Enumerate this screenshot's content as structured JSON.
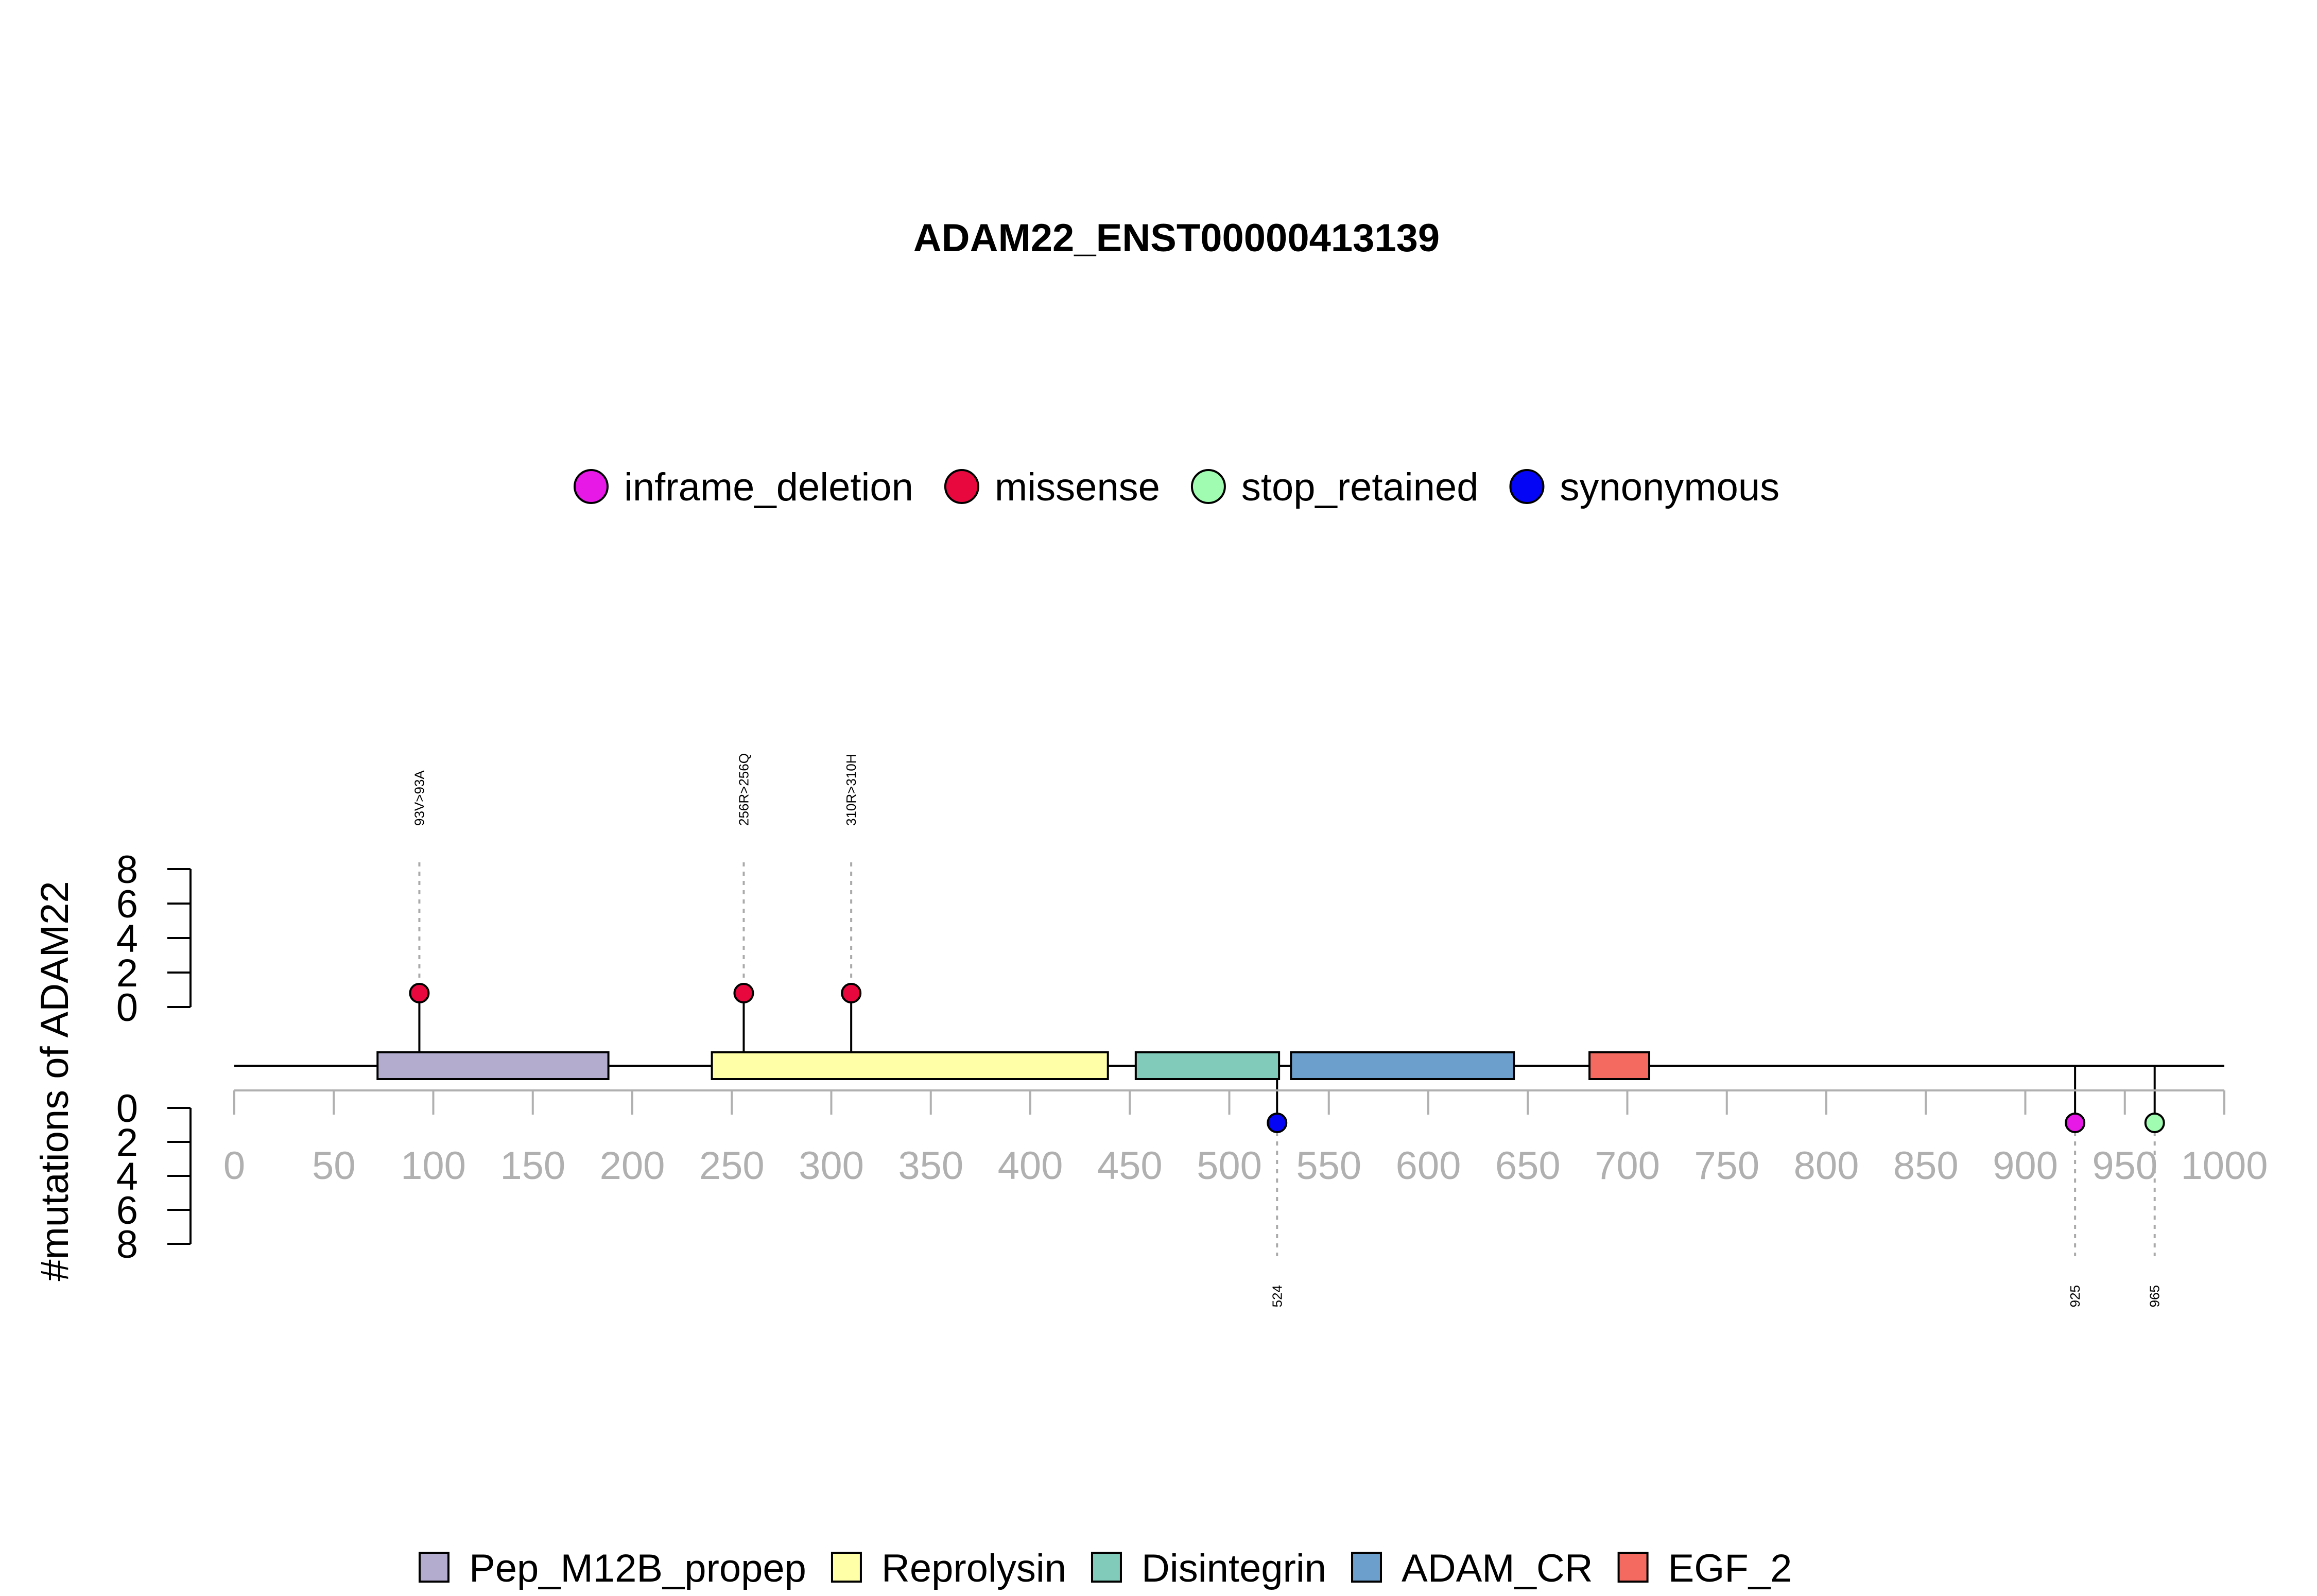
{
  "chart_data": {
    "type": "lollipop",
    "title": "ADAM22_ENST00000413139",
    "ylabel": "#mutations of ADAM22",
    "xlim": [
      0,
      1000
    ],
    "x_ticks": [
      0,
      50,
      100,
      150,
      200,
      250,
      300,
      350,
      400,
      450,
      500,
      550,
      600,
      650,
      700,
      750,
      800,
      850,
      900,
      950,
      1000
    ],
    "y_ticks_upper": [
      0,
      2,
      4,
      6,
      8
    ],
    "y_ticks_lower": [
      0,
      2,
      4,
      6,
      8
    ],
    "mutation_legend": [
      {
        "name": "inframe_deletion",
        "color": "#e619e6"
      },
      {
        "name": "missense",
        "color": "#e8083e"
      },
      {
        "name": "stop_retained",
        "color": "#9ffcb0"
      },
      {
        "name": "synonymous",
        "color": "#0505f5"
      }
    ],
    "domain_legend": [
      {
        "name": "Pep_M12B_propep",
        "color": "#b3accf"
      },
      {
        "name": "Reprolysin",
        "color": "#ffffa8"
      },
      {
        "name": "Disintegrin",
        "color": "#80cbb9"
      },
      {
        "name": "ADAM_CR",
        "color": "#6d9fcc"
      },
      {
        "name": "EGF_2",
        "color": "#f56a60"
      }
    ],
    "domains": [
      {
        "name": "Pep_M12B_propep",
        "start": 72,
        "end": 188
      },
      {
        "name": "Reprolysin",
        "start": 240,
        "end": 439
      },
      {
        "name": "Disintegrin",
        "start": 453,
        "end": 525
      },
      {
        "name": "ADAM_CR",
        "start": 531,
        "end": 643
      },
      {
        "name": "EGF_2",
        "start": 681,
        "end": 711
      }
    ],
    "mutations": [
      {
        "position": 93,
        "count": 1,
        "type": "missense",
        "side": "top",
        "label": "93V>93A"
      },
      {
        "position": 256,
        "count": 1,
        "type": "missense",
        "side": "top",
        "label": "256R>256Q"
      },
      {
        "position": 310,
        "count": 1,
        "type": "missense",
        "side": "top",
        "label": "310R>310H"
      },
      {
        "position": 524,
        "count": 1,
        "type": "synonymous",
        "side": "bottom",
        "label": "524"
      },
      {
        "position": 925,
        "count": 1,
        "type": "inframe_deletion",
        "side": "bottom",
        "label": "925"
      },
      {
        "position": 965,
        "count": 1,
        "type": "stop_retained",
        "side": "bottom",
        "label": "965"
      }
    ]
  }
}
